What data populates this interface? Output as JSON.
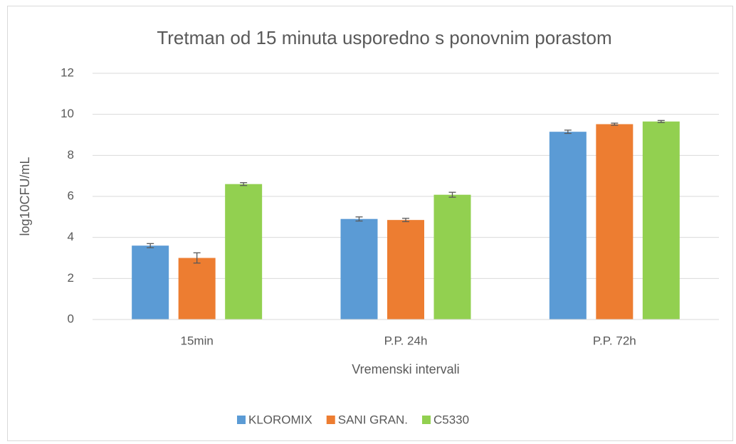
{
  "chart_data": {
    "type": "bar",
    "title": "Tretman od 15 minuta usporedno s ponovnim porastom",
    "x_label": "Vremenski intervali",
    "y_label": "log10CFU/mL",
    "categories": [
      "15min",
      "P.P. 24h",
      "P.P. 72h"
    ],
    "series": [
      {
        "name": "KLOROMIX",
        "color": "#5b9bd5",
        "values": [
          3.6,
          4.9,
          9.15
        ],
        "errors": [
          0.1,
          0.1,
          0.08
        ]
      },
      {
        "name": "SANI GRAN.",
        "color": "#ed7d31",
        "values": [
          3.0,
          4.85,
          9.52
        ],
        "errors": [
          0.25,
          0.08,
          0.05
        ]
      },
      {
        "name": "C5330",
        "color": "#92d050",
        "values": [
          6.6,
          6.08,
          9.65
        ],
        "errors": [
          0.07,
          0.12,
          0.05
        ]
      }
    ],
    "ylim": [
      0,
      12
    ],
    "yticks": [
      0,
      2,
      4,
      6,
      8,
      10,
      12
    ],
    "grid": true,
    "legend": "bottom"
  }
}
